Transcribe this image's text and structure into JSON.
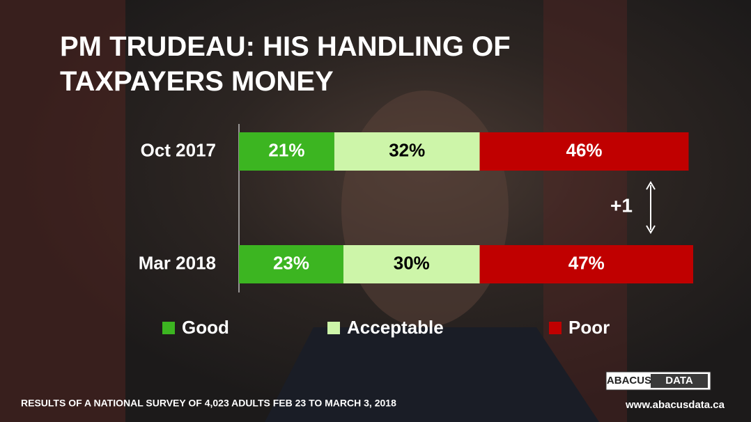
{
  "chart_data": {
    "type": "stacked-barh",
    "title": "PM TRUDEAU: HIS HANDLING OF TAXPAYERS MONEY",
    "categories": [
      "Oct 2017",
      "Mar 2018"
    ],
    "series": [
      {
        "name": "Good",
        "color": "#3cb521",
        "label_color": "#ffffff",
        "values": [
          21,
          23
        ],
        "value_labels": [
          "21%",
          "23%"
        ]
      },
      {
        "name": "Acceptable",
        "color": "#cdf5a9",
        "label_color": "#000000",
        "values": [
          32,
          30
        ],
        "value_labels": [
          "32%",
          "30%"
        ]
      },
      {
        "name": "Poor",
        "color": "#c00000",
        "label_color": "#ffffff",
        "values": [
          46,
          47
        ],
        "value_labels": [
          "46%",
          "47%"
        ]
      }
    ],
    "annotation": "+1",
    "footnote": "RESULTS OF A NATIONAL SURVEY OF 4,023 ADULTS FEB 23 TO MARCH 3, 2018",
    "logo": {
      "left": "ABACUS",
      "right": "DATA",
      "url": "www.abacusdata.ca"
    }
  }
}
